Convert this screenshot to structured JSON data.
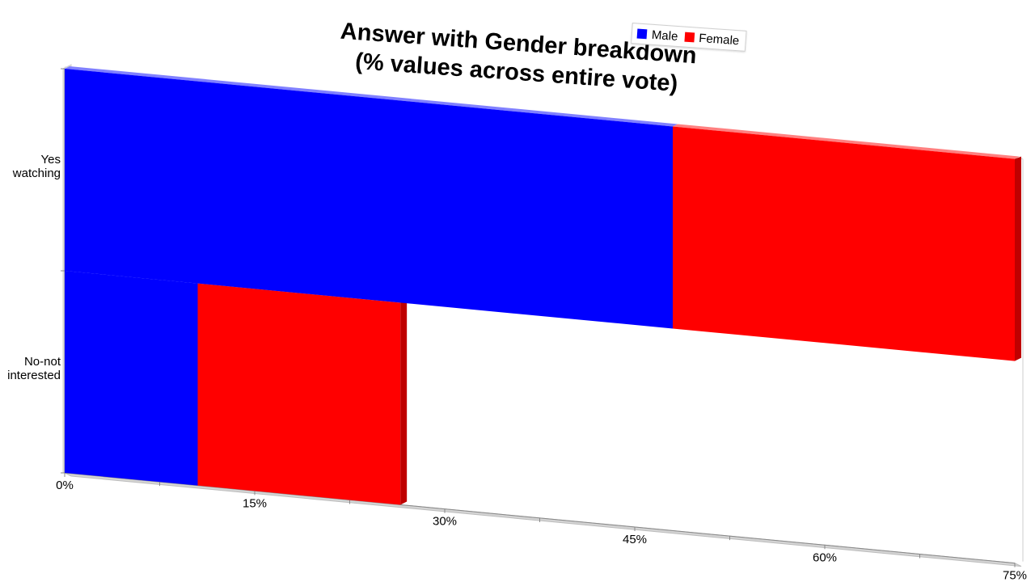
{
  "chart_data": {
    "type": "bar",
    "orientation": "horizontal",
    "stacked": true,
    "three_d": true,
    "title": "Answer with Gender breakdown (% values across entire vote)",
    "title_lines": [
      "Answer with Gender breakdown",
      "(% values across entire vote)"
    ],
    "categories": [
      "Yes watching",
      "No-not interested"
    ],
    "category_label_lines": [
      [
        "Yes",
        "watching"
      ],
      [
        "No-not",
        "interested"
      ]
    ],
    "series": [
      {
        "name": "Male",
        "color": "#0000ff",
        "values": [
          48,
          10.5
        ]
      },
      {
        "name": "Female",
        "color": "#ff0000",
        "values": [
          27,
          16
        ]
      }
    ],
    "xlim": [
      0,
      75
    ],
    "x_ticks": [
      "0%",
      "15%",
      "30%",
      "45%",
      "60%",
      "75%"
    ],
    "legend_position": "top-right",
    "grid": false
  }
}
